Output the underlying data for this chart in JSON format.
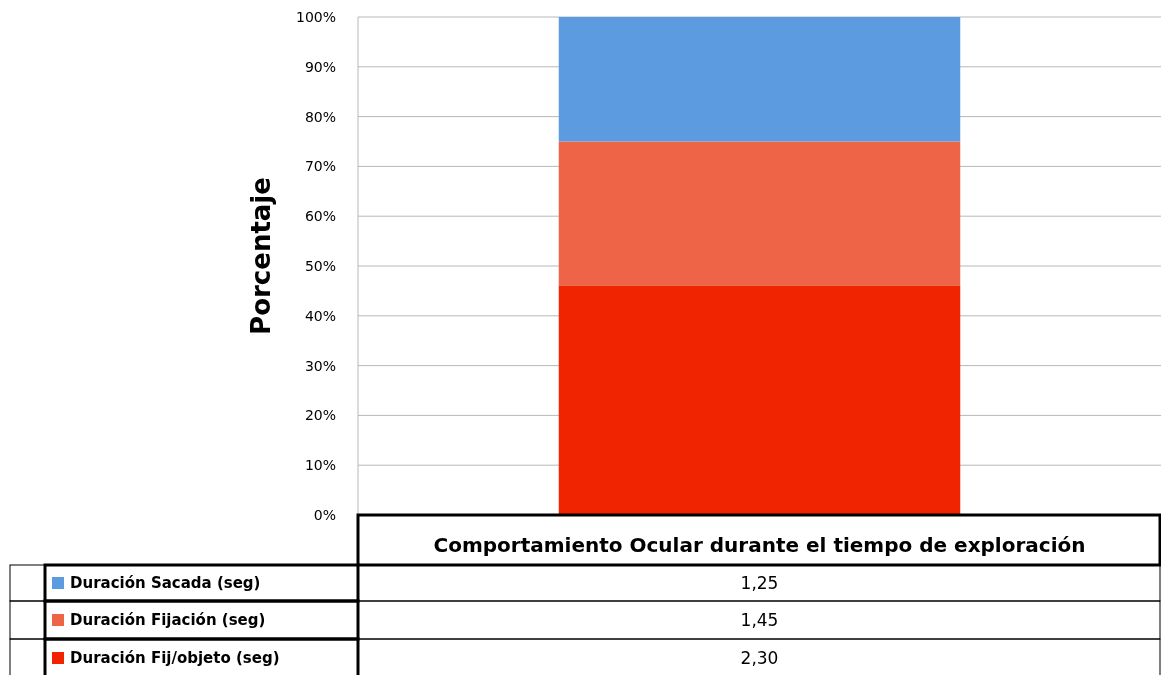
{
  "chart_data": {
    "type": "bar",
    "stacked": true,
    "ylabel": "Porcentaje",
    "categories": [
      "Comportamiento Ocular durante el tiempo de exploración"
    ],
    "series": [
      {
        "name": "Duración Fij/objeto (seg)",
        "color": "#f02400",
        "values": [
          46
        ]
      },
      {
        "name": "Duración Fijación (seg)",
        "color": "#ee6447",
        "values": [
          29
        ]
      },
      {
        "name": "Duración Sacada (seg)",
        "color": "#5c9be0",
        "values": [
          25
        ]
      }
    ],
    "annotations": [
      "1,25",
      "1,45",
      "2,30"
    ],
    "ylim": [
      0,
      100
    ],
    "yticks": [
      {
        "value": 0,
        "label": "0%"
      },
      {
        "value": 10,
        "label": "10%"
      },
      {
        "value": 20,
        "label": "20%"
      },
      {
        "value": 30,
        "label": "30%"
      },
      {
        "value": 40,
        "label": "40%"
      },
      {
        "value": 50,
        "label": "50%"
      },
      {
        "value": 60,
        "label": "60%"
      },
      {
        "value": 70,
        "label": "70%"
      },
      {
        "value": 80,
        "label": "80%"
      },
      {
        "value": 90,
        "label": "90%"
      },
      {
        "value": 100,
        "label": "100%"
      }
    ],
    "grid": "y",
    "legend": "bottom"
  }
}
